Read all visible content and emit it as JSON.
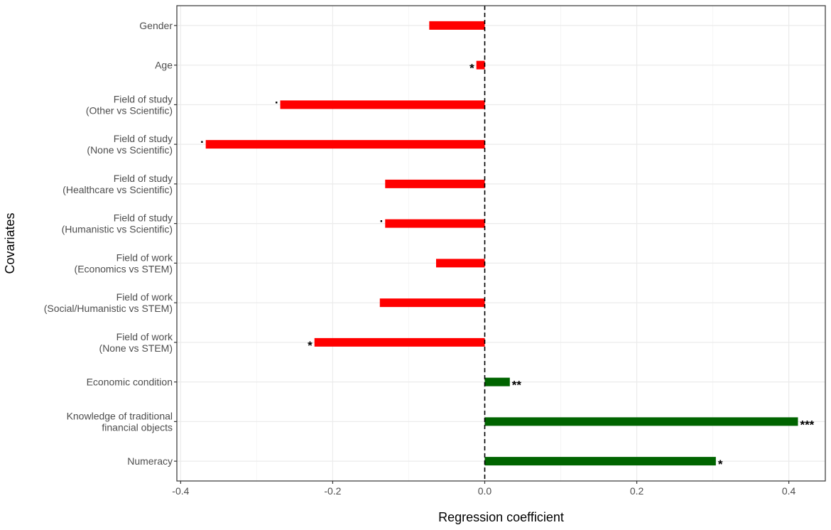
{
  "chart_data": {
    "type": "bar",
    "orientation": "horizontal",
    "xlabel": "Regression coefficient",
    "ylabel": "Covariates",
    "xlim": [
      -0.405,
      0.448
    ],
    "xticks": [
      -0.4,
      -0.2,
      0.0,
      0.2,
      0.4
    ],
    "xtick_labels": [
      "-0.4",
      "-0.2",
      "0.0",
      "0.2",
      "0.4"
    ],
    "reference_line": {
      "x": 0,
      "style": "dashed"
    },
    "grid": true,
    "colors": {
      "positive": "#006400",
      "negative": "#ff0000",
      "grid_major": "#ebebeb",
      "grid_minor": "#f5f5f5",
      "panel_border": "#333333"
    },
    "categories": [
      {
        "lines": [
          "Gender"
        ],
        "value": -0.073,
        "significance": ""
      },
      {
        "lines": [
          "Age"
        ],
        "value": -0.011,
        "significance": "*"
      },
      {
        "lines": [
          "Field of study",
          "(Other vs Scientific)"
        ],
        "value": -0.269,
        "significance": "."
      },
      {
        "lines": [
          "Field of study",
          "(None vs Scientific)"
        ],
        "value": -0.367,
        "significance": "."
      },
      {
        "lines": [
          "Field of study",
          "(Healthcare vs Scientific)"
        ],
        "value": -0.131,
        "significance": ""
      },
      {
        "lines": [
          "Field of study",
          "(Humanistic vs Scientific)"
        ],
        "value": -0.131,
        "significance": "."
      },
      {
        "lines": [
          "Field of work",
          "(Economics vs STEM)"
        ],
        "value": -0.064,
        "significance": ""
      },
      {
        "lines": [
          "Field of work",
          "(Social/Humanistic vs STEM)"
        ],
        "value": -0.138,
        "significance": ""
      },
      {
        "lines": [
          "Field of work",
          "(None vs STEM)"
        ],
        "value": -0.224,
        "significance": "*"
      },
      {
        "lines": [
          "Economic condition"
        ],
        "value": 0.033,
        "significance": "**"
      },
      {
        "lines": [
          "Knowledge of traditional",
          "financial objects"
        ],
        "value": 0.412,
        "significance": "***"
      },
      {
        "lines": [
          "Numeracy"
        ],
        "value": 0.304,
        "significance": "*"
      }
    ]
  }
}
